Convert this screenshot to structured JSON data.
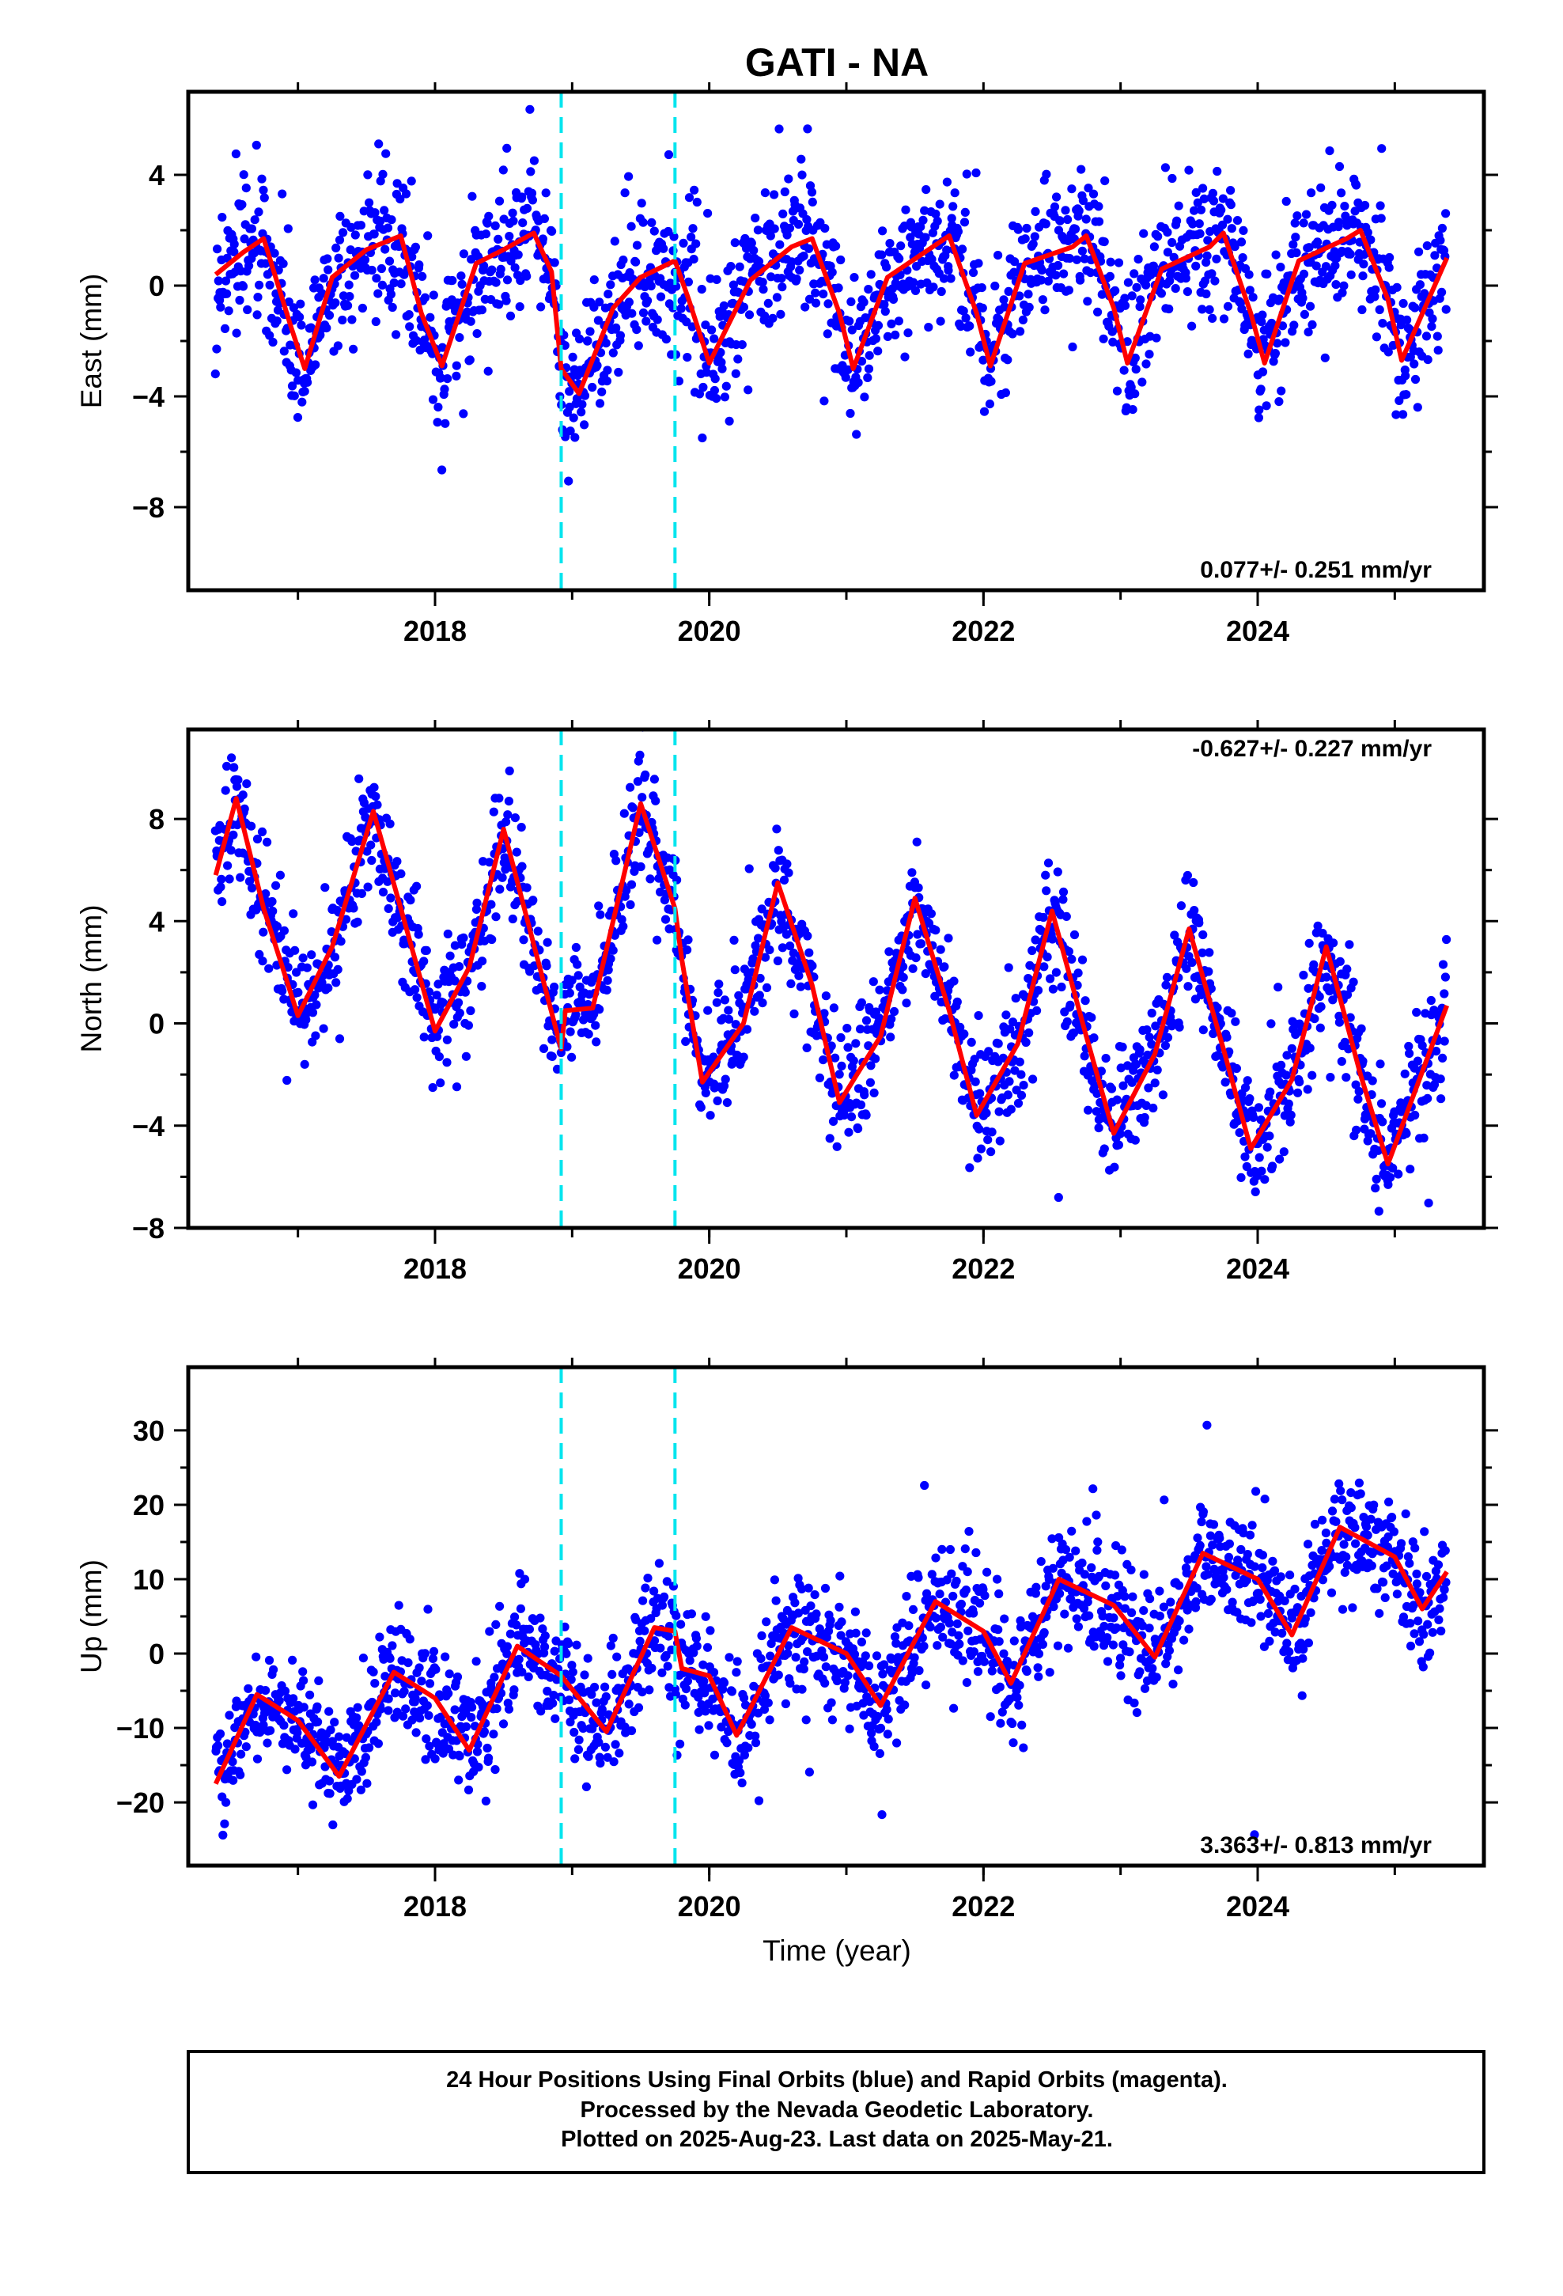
{
  "title": "GATI - NA",
  "footer": {
    "line1": "24 Hour Positions Using Final Orbits (blue) and Rapid Orbits (magenta).",
    "line2": "Processed by the Nevada Geodetic Laboratory.",
    "line3": "Plotted on 2025-Aug-23. Last data on 2025-May-21."
  },
  "colors": {
    "points": "#0000ff",
    "fit": "#ff0000",
    "breaks": "#00e5ee",
    "frame": "#000000"
  },
  "xlabel": "Time (year)",
  "chart_data": [
    {
      "type": "scatter",
      "component": "East",
      "ylabel": "East (mm)",
      "rate_text": "0.077+/- 0.251 mm/yr",
      "rate_position": "bottom-right",
      "xlim": [
        2016.2,
        2025.65
      ],
      "ylim": [
        -11,
        7
      ],
      "x_ticks": [
        2018,
        2020,
        2022,
        2024
      ],
      "x_tick_labels": [
        "2018",
        "2020",
        "2022",
        "2024"
      ],
      "y_ticks": [
        -8,
        -4,
        0,
        4
      ],
      "y_tick_labels": [
        "−8",
        "−4",
        "0",
        "4"
      ],
      "equipment_breaks": [
        2018.92,
        2019.75
      ],
      "model": {
        "rate": 0.077,
        "offset": -1.0,
        "seasonal_amp": 2.3,
        "seasonal_phase_year": 0.55,
        "semiannual_amp": 0.6,
        "noise_std": 1.3
      },
      "fit_curve": {
        "x": [
          2016.4,
          2016.6,
          2016.75,
          2016.95,
          2017.05,
          2017.25,
          2017.5,
          2017.75,
          2017.9,
          2018.05,
          2018.3,
          2018.5,
          2018.72,
          2018.85,
          2018.92,
          2019.05,
          2019.3,
          2019.5,
          2019.75,
          2019.85,
          2020.0,
          2020.3,
          2020.6,
          2020.75,
          2020.95,
          2021.05,
          2021.3,
          2021.6,
          2021.75,
          2021.95,
          2022.05,
          2022.3,
          2022.65,
          2022.75,
          2022.95,
          2023.05,
          2023.3,
          2023.65,
          2023.75,
          2023.95,
          2024.05,
          2024.3,
          2024.65,
          2024.75,
          2024.95,
          2025.05,
          2025.38
        ],
        "y": [
          0.4,
          1.2,
          1.7,
          -1.5,
          -3.0,
          0.3,
          1.3,
          1.8,
          -1.0,
          -2.9,
          0.8,
          1.3,
          1.9,
          0.5,
          -3.0,
          -3.9,
          -0.8,
          0.3,
          0.9,
          -0.5,
          -2.8,
          0.2,
          1.4,
          1.7,
          -1.0,
          -3.0,
          0.3,
          1.3,
          1.8,
          -1.0,
          -2.9,
          0.8,
          1.4,
          1.8,
          -0.8,
          -2.8,
          0.6,
          1.4,
          1.9,
          -1.0,
          -2.8,
          0.9,
          1.7,
          2.0,
          -0.5,
          -2.7,
          1.0
        ]
      }
    },
    {
      "type": "scatter",
      "component": "North",
      "ylabel": "North (mm)",
      "rate_text": "-0.627+/- 0.227 mm/yr",
      "rate_position": "top-right",
      "xlim": [
        2016.2,
        2025.65
      ],
      "ylim": [
        -8,
        11.5
      ],
      "x_ticks": [
        2018,
        2020,
        2022,
        2024
      ],
      "x_tick_labels": [
        "2018",
        "2020",
        "2022",
        "2024"
      ],
      "y_ticks": [
        -8,
        -4,
        0,
        4,
        8
      ],
      "y_tick_labels": [
        "−8",
        "−4",
        "0",
        "4",
        "8"
      ],
      "equipment_breaks": [
        2018.92,
        2019.75
      ],
      "model": {
        "rate": -0.627,
        "offset": 3.5,
        "seasonal_amp": 4.8,
        "seasonal_phase_year": 0.5,
        "semiannual_amp": 0.0,
        "noise_std": 1.2
      },
      "fit_curve": {
        "x": [
          2016.4,
          2016.55,
          2016.75,
          2017.0,
          2017.25,
          2017.55,
          2017.75,
          2018.0,
          2018.25,
          2018.5,
          2018.7,
          2018.92,
          2018.95,
          2019.15,
          2019.5,
          2019.75,
          2019.8,
          2019.95,
          2020.25,
          2020.5,
          2020.75,
          2020.95,
          2021.25,
          2021.5,
          2021.75,
          2021.95,
          2022.25,
          2022.5,
          2022.75,
          2022.95,
          2023.25,
          2023.5,
          2023.75,
          2023.95,
          2024.25,
          2024.5,
          2024.75,
          2024.95,
          2025.38
        ],
        "y": [
          5.8,
          8.8,
          4.5,
          0.3,
          3.0,
          8.3,
          4.5,
          -0.3,
          2.2,
          7.6,
          3.5,
          -1.0,
          0.5,
          0.6,
          8.6,
          4.5,
          2.5,
          -2.3,
          0.0,
          5.5,
          1.5,
          -3.1,
          -0.5,
          4.9,
          0.5,
          -3.6,
          -0.8,
          4.4,
          -0.5,
          -4.3,
          -1.2,
          3.7,
          -1.0,
          -4.9,
          -2.2,
          3.0,
          -2.0,
          -5.5,
          0.7
        ]
      }
    },
    {
      "type": "scatter",
      "component": "Up",
      "ylabel": "Up (mm)",
      "rate_text": "3.363+/- 0.813 mm/yr",
      "rate_position": "bottom-right",
      "xlim": [
        2016.2,
        2025.65
      ],
      "ylim": [
        -28.5,
        38.5
      ],
      "x_ticks": [
        2018,
        2020,
        2022,
        2024
      ],
      "x_tick_labels": [
        "2018",
        "2020",
        "2022",
        "2024"
      ],
      "y_ticks": [
        -20,
        -10,
        0,
        10,
        20,
        30
      ],
      "y_tick_labels": [
        "−20",
        "−10",
        "0",
        "10",
        "20",
        "30"
      ],
      "equipment_breaks": [
        2018.92,
        2019.75
      ],
      "model": {
        "rate": 3.363,
        "offset": -18.0,
        "seasonal_amp": 5.0,
        "seasonal_phase_year": 0.65,
        "semiannual_amp": 0.0,
        "noise_std": 4.0
      },
      "fit_curve": {
        "x": [
          2016.4,
          2016.7,
          2017.0,
          2017.3,
          2017.7,
          2018.0,
          2018.25,
          2018.6,
          2018.92,
          2019.25,
          2019.6,
          2019.75,
          2019.8,
          2020.0,
          2020.2,
          2020.6,
          2021.0,
          2021.25,
          2021.65,
          2022.0,
          2022.2,
          2022.55,
          2022.95,
          2023.25,
          2023.6,
          2024.0,
          2024.25,
          2024.6,
          2025.0,
          2025.2,
          2025.38
        ],
        "y": [
          -17.5,
          -5.5,
          -9.0,
          -16.5,
          -2.5,
          -6.0,
          -13.0,
          1.0,
          -3.0,
          -10.5,
          3.5,
          3.0,
          -2.0,
          -3.0,
          -11.0,
          3.5,
          0.0,
          -7.0,
          7.0,
          3.0,
          -4.0,
          10.0,
          6.5,
          -0.5,
          13.5,
          10.0,
          2.5,
          17.0,
          13.0,
          6.0,
          11.0
        ]
      }
    }
  ]
}
